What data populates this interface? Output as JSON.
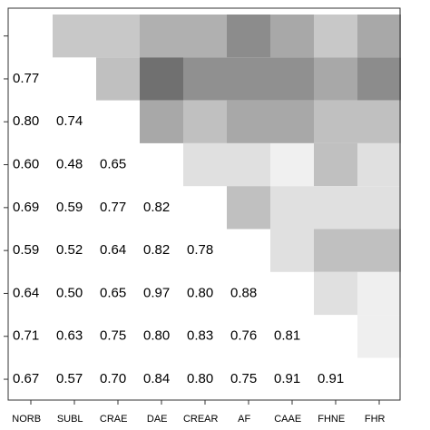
{
  "chart_data": {
    "type": "corrmatrix",
    "categories": [
      "NORB",
      "SUBL",
      "CRAE",
      "DAE",
      "CREAR",
      "AF",
      "CAAE",
      "FHNE",
      "FHR"
    ],
    "values": [
      [],
      [
        0.77
      ],
      [
        0.8,
        0.74
      ],
      [
        0.6,
        0.48,
        0.65
      ],
      [
        0.69,
        0.59,
        0.77,
        0.82
      ],
      [
        0.59,
        0.52,
        0.64,
        0.82,
        0.78
      ],
      [
        0.64,
        0.5,
        0.65,
        0.97,
        0.8,
        0.88
      ],
      [
        0.71,
        0.63,
        0.75,
        0.8,
        0.83,
        0.76,
        0.81
      ],
      [
        0.67,
        0.57,
        0.7,
        0.84,
        0.8,
        0.75,
        0.91,
        0.91
      ]
    ],
    "value_labels": [
      [],
      [
        "0.77"
      ],
      [
        "0.80",
        "0.74"
      ],
      [
        "0.60",
        "0.48",
        "0.65"
      ],
      [
        "0.69",
        "0.59",
        "0.77",
        "0.82"
      ],
      [
        "0.59",
        "0.52",
        "0.64",
        "0.82",
        "0.78"
      ],
      [
        "0.64",
        "0.50",
        "0.65",
        "0.97",
        "0.80",
        "0.88"
      ],
      [
        "0.71",
        "0.63",
        "0.75",
        "0.80",
        "0.83",
        "0.76",
        "0.81"
      ],
      [
        "0.67",
        "0.57",
        "0.70",
        "0.84",
        "0.80",
        "0.75",
        "0.91",
        "0.91"
      ]
    ],
    "upper_colors": [
      [
        "#c8c8c8",
        "#c8c8c8",
        "#b0b0b0",
        "#b0b0b0",
        "#8c8c8c",
        "#a8a8a8",
        "#c8c8c8",
        "#a8a8a8"
      ],
      [
        "#c0c0c0",
        "#707070",
        "#909090",
        "#909090",
        "#909090",
        "#a8a8a8",
        "#8c8c8c"
      ],
      [
        "#a8a8a8",
        "#c0c0c0",
        "#a8a8a8",
        "#a8a8a8",
        "#c0c0c0",
        "#c0c0c0"
      ],
      [
        "#e0e0e0",
        "#e0e0e0",
        "#f0f0f0",
        "#c0c0c0",
        "#e0e0e0"
      ],
      [
        "#c0c0c0",
        "#e0e0e0",
        "#e0e0e0",
        "#e0e0e0"
      ],
      [
        "#e0e0e0",
        "#c0c0c0",
        "#c0c0c0"
      ],
      [
        "#e0e0e0",
        "#efefef"
      ],
      [
        "#efefef"
      ],
      []
    ]
  }
}
